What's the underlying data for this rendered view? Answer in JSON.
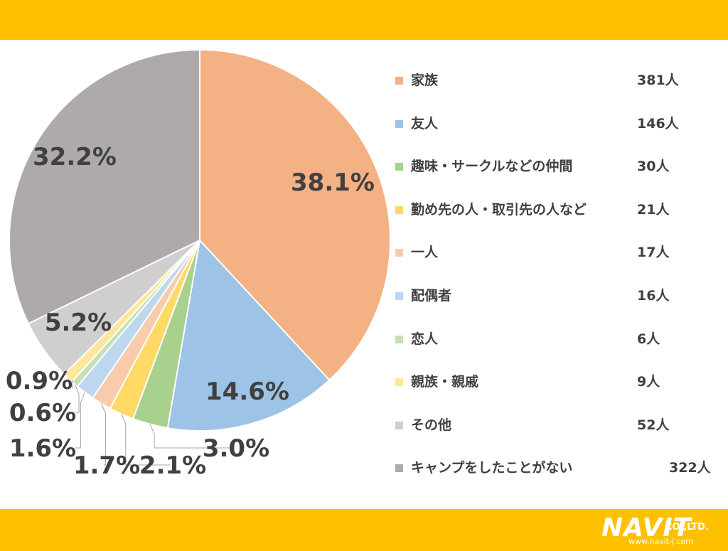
{
  "colors": {
    "band": "#FFC000"
  },
  "chart_data": {
    "type": "pie",
    "title": "",
    "series": [
      {
        "name": "家族",
        "count": "381人",
        "value": 38.1,
        "label": "38.1%",
        "color": "#F4B183"
      },
      {
        "name": "友人",
        "count": "146人",
        "value": 14.6,
        "label": "14.6%",
        "color": "#9DC3E6"
      },
      {
        "name": "趣味・サークルなどの仲間",
        "count": "30人",
        "value": 3.0,
        "label": "3.0%",
        "color": "#A9D18E"
      },
      {
        "name": "勤め先の人・取引先の人など",
        "count": "21人",
        "value": 2.1,
        "label": "2.1%",
        "color": "#FFD966"
      },
      {
        "name": "一人",
        "count": "17人",
        "value": 1.7,
        "label": "1.7%",
        "color": "#F8CBAD"
      },
      {
        "name": "配偶者",
        "count": "16人",
        "value": 1.6,
        "label": "1.6%",
        "color": "#BDD7EE"
      },
      {
        "name": "恋人",
        "count": "6人",
        "value": 0.6,
        "label": "0.6%",
        "color": "#C5E0B4"
      },
      {
        "name": "親族・親戚",
        "count": "9人",
        "value": 0.9,
        "label": "0.9%",
        "color": "#FFE699"
      },
      {
        "name": "その他",
        "count": "52人",
        "value": 5.2,
        "label": "5.2%",
        "color": "#D0CECE"
      },
      {
        "name": "キャンプをしたことがない",
        "count": "322人",
        "value": 32.2,
        "label": "32.2%",
        "color": "#AEAAAA"
      }
    ]
  },
  "logo": {
    "main": "NAVIT",
    "company": "CO.,LTD.",
    "url": "www.navit-j.com"
  }
}
